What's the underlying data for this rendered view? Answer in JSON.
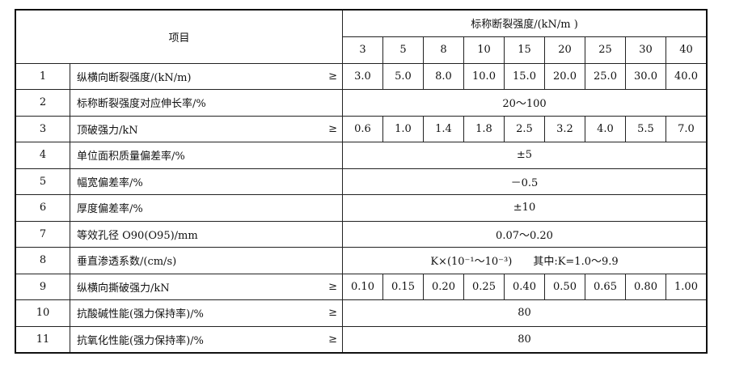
{
  "header": {
    "item": "项目",
    "nominal": "标称断裂强度/(kN/m )",
    "grades": [
      "3",
      "5",
      "8",
      "10",
      "15",
      "20",
      "25",
      "30",
      "40"
    ]
  },
  "ge_symbol": "≥",
  "rows": [
    {
      "no": "1",
      "item": "纵横向断裂强度/(kN/m)",
      "ge": true,
      "values": [
        "3.0",
        "5.0",
        "8.0",
        "10.0",
        "15.0",
        "20.0",
        "25.0",
        "30.0",
        "40.0"
      ]
    },
    {
      "no": "2",
      "item": "标称断裂强度对应伸长率/%",
      "ge": false,
      "span": "20～100"
    },
    {
      "no": "3",
      "item": "顶破强力/kN",
      "ge": true,
      "values": [
        "0.6",
        "1.0",
        "1.4",
        "1.8",
        "2.5",
        "3.2",
        "4.0",
        "5.5",
        "7.0"
      ]
    },
    {
      "no": "4",
      "item": "单位面积质量偏差率/%",
      "ge": false,
      "span": "±5"
    },
    {
      "no": "5",
      "item": "幅宽偏差率/%",
      "ge": false,
      "span": "－0.5"
    },
    {
      "no": "6",
      "item": "厚度偏差率/%",
      "ge": false,
      "span": "±10"
    },
    {
      "no": "7",
      "item": "等效孔径 O90(O95)/mm",
      "ge": false,
      "span": "0.07～0.20"
    },
    {
      "no": "8",
      "item": "垂直渗透系数/(cm/s)",
      "ge": false,
      "span": "K×(10⁻¹～10⁻³)　　其中:K=1.0～9.9"
    },
    {
      "no": "9",
      "item": "纵横向撕破强力/kN",
      "ge": true,
      "values": [
        "0.10",
        "0.15",
        "0.20",
        "0.25",
        "0.40",
        "0.50",
        "0.65",
        "0.80",
        "1.00"
      ]
    },
    {
      "no": "10",
      "item": "抗酸碱性能(强力保持率)/%",
      "ge": true,
      "span": "80"
    },
    {
      "no": "11",
      "item": "抗氧化性能(强力保持率)/%",
      "ge": true,
      "span": "80"
    }
  ]
}
